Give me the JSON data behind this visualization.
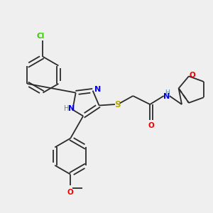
{
  "background_color": "#efefef",
  "bond_color": "#2a2a2a",
  "cl_color": "#33cc00",
  "n_color": "#0000ee",
  "o_color": "#ee0000",
  "s_color": "#bbaa00",
  "h_color": "#5588aa",
  "figsize": [
    3.0,
    3.0
  ],
  "dpi": 100,
  "xlim": [
    0,
    10
  ],
  "ylim": [
    0,
    10
  ]
}
